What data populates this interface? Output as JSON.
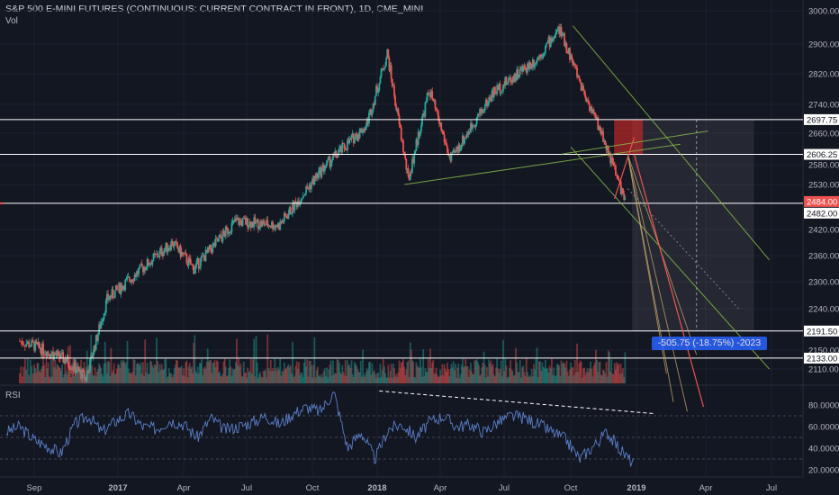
{
  "header": {
    "title": "S&P 500 E-MINI FUTURES (CONTINUOUS: CURRENT CONTRACT IN FRONT), 1D, CME_MINI",
    "volume_label": "Vol",
    "rsi_label": "RSI"
  },
  "measure_label": "-505.75 (-18.75%) -2023",
  "colors": {
    "background": "#131722",
    "up_candle": "#26a69a",
    "down_candle": "#ef5350",
    "trendline": "#8bc34a",
    "rsi_line": "#5b7ec9",
    "axis_text": "#b2b5be",
    "hline": "#ffffff"
  },
  "chart_data": [
    {
      "type": "candlestick",
      "title": "S&P 500 E-MINI FUTURES (CONTINUOUS: CURRENT CONTRACT IN FRONT), 1D, CME_MINI",
      "x_tick_labels": [
        "Sep",
        "2017",
        "Apr",
        "Jul",
        "Oct",
        "2018",
        "Apr",
        "Jul",
        "Oct",
        "2019",
        "Apr",
        "Jul"
      ],
      "y_tick_labels": [
        "3000.00",
        "2900.00",
        "2820.00",
        "2740.00",
        "2660.00",
        "2580.00",
        "2530.00",
        "2420.00",
        "2360.00",
        "2300.00",
        "2240.00",
        "2150.00",
        "2110.00"
      ],
      "price_anchors": [
        {
          "date": "2016-08",
          "price": 2170
        },
        {
          "date": "2016-10",
          "price": 2130
        },
        {
          "date": "2016-11",
          "price": 2090
        },
        {
          "date": "2016-12",
          "price": 2260
        },
        {
          "date": "2017-03",
          "price": 2390
        },
        {
          "date": "2017-04",
          "price": 2330
        },
        {
          "date": "2017-06",
          "price": 2440
        },
        {
          "date": "2017-08",
          "price": 2430
        },
        {
          "date": "2017-10",
          "price": 2570
        },
        {
          "date": "2017-12",
          "price": 2680
        },
        {
          "date": "2018-01",
          "price": 2875
        },
        {
          "date": "2018-02",
          "price": 2540
        },
        {
          "date": "2018-03",
          "price": 2780
        },
        {
          "date": "2018-04",
          "price": 2590
        },
        {
          "date": "2018-06",
          "price": 2770
        },
        {
          "date": "2018-08",
          "price": 2860
        },
        {
          "date": "2018-09",
          "price": 2945
        },
        {
          "date": "2018-10",
          "price": 2790
        },
        {
          "date": "2018-11",
          "price": 2650
        },
        {
          "date": "2018-12",
          "price": 2490
        }
      ],
      "horizontal_levels": [
        {
          "label": "2697.75",
          "value": 2697.75
        },
        {
          "label": "2606.25",
          "value": 2606.25
        },
        {
          "label": "2484.00",
          "value": 2484.0,
          "highlight": true
        },
        {
          "label": "2482.00",
          "value": 2482.0
        },
        {
          "label": "2191.50",
          "value": 2191.5
        },
        {
          "label": "2133.00",
          "value": 2133.0
        }
      ],
      "projection": {
        "change": -505.75,
        "percent": -18.75,
        "target": 2023
      }
    },
    {
      "type": "line",
      "title": "RSI",
      "y_tick_labels": [
        "80.0000",
        "60.0000",
        "40.0000",
        "20.0000"
      ],
      "ylim": [
        15,
        95
      ],
      "series": [
        {
          "values": [
            55,
            60,
            48,
            42,
            35,
            62,
            70,
            55,
            65,
            72,
            60,
            58,
            66,
            62,
            50,
            68,
            57,
            60,
            64,
            70,
            62,
            72,
            78,
            74,
            92,
            40,
            55,
            30,
            58,
            62,
            50,
            64,
            70,
            60,
            62,
            55,
            64,
            70,
            68,
            62,
            55,
            48,
            30,
            42,
            55,
            38,
            25
          ]
        }
      ]
    }
  ]
}
